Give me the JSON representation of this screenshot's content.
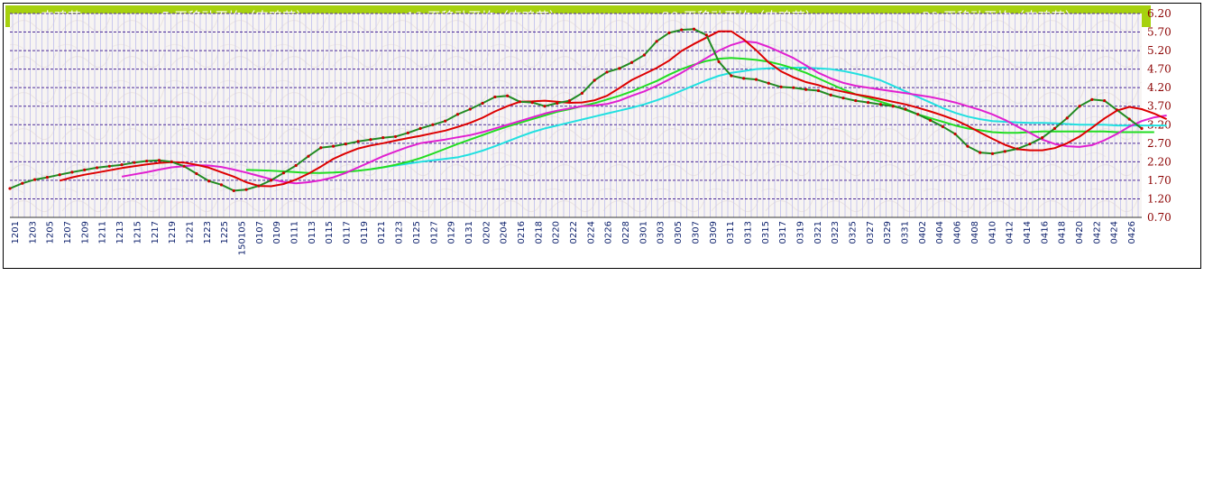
{
  "chart_data": {
    "type": "line",
    "title": "",
    "xlabel": "",
    "ylabel": "",
    "ylim": [
      0.7,
      6.2
    ],
    "yticks": [
      "6.20",
      "5.70",
      "5.20",
      "4.70",
      "4.20",
      "3.70",
      "3.20",
      "2.70",
      "2.20",
      "1.70",
      "1.20",
      "0.70"
    ],
    "x_tick_labels": [
      "1201",
      "1203",
      "1205",
      "1207",
      "1209",
      "1211",
      "1213",
      "1215",
      "1217",
      "1219",
      "1221",
      "1223",
      "1225",
      "150105",
      "0107",
      "0109",
      "0111",
      "0113",
      "0115",
      "0117",
      "0119",
      "0121",
      "0123",
      "0125",
      "0127",
      "0129",
      "0131",
      "0202",
      "0204",
      "0216",
      "0218",
      "0220",
      "0222",
      "0224",
      "0226",
      "0228",
      "0301",
      "0303",
      "0305",
      "0307",
      "0309",
      "0311",
      "0313",
      "0315",
      "0317",
      "0319",
      "0321",
      "0323",
      "0325",
      "0327",
      "0329",
      "0331",
      "0402",
      "0404",
      "0406",
      "0408",
      "0410",
      "0412",
      "0414",
      "0416",
      "0418",
      "0420",
      "0422",
      "0424",
      "0426"
    ],
    "grid": "horizontal dashed",
    "legend_position": "top",
    "series": [
      {
        "name": "肉鸡苗",
        "color": "#228b22",
        "marker_color": "#cc0000",
        "values": [
          1.48,
          1.62,
          1.72,
          1.78,
          1.85,
          1.92,
          1.98,
          2.04,
          2.08,
          2.12,
          2.18,
          2.22,
          2.24,
          2.2,
          2.08,
          1.88,
          1.68,
          1.58,
          1.42,
          1.45,
          1.55,
          1.7,
          1.9,
          2.1,
          2.35,
          2.58,
          2.62,
          2.68,
          2.75,
          2.8,
          2.85,
          2.88,
          2.98,
          3.1,
          3.2,
          3.3,
          3.48,
          3.62,
          3.78,
          3.95,
          3.98,
          3.82,
          3.8,
          3.7,
          3.78,
          3.85,
          4.05,
          4.4,
          4.62,
          4.72,
          4.88,
          5.08,
          5.45,
          5.68,
          5.76,
          5.78,
          5.62,
          4.9,
          4.52,
          4.45,
          4.42,
          4.32,
          4.22,
          4.2,
          4.15,
          4.12,
          4.0,
          3.92,
          3.85,
          3.8,
          3.75,
          3.7,
          3.62,
          3.48,
          3.32,
          3.15,
          2.95,
          2.62,
          2.45,
          2.42,
          2.48,
          2.55,
          2.68,
          2.85,
          3.1,
          3.38,
          3.7,
          3.88,
          3.85,
          3.6,
          3.35,
          3.1
        ]
      },
      {
        "name": "5 天移动平均（肉鸡苗）",
        "color": "#dd0000",
        "values": [
          null,
          null,
          null,
          null,
          1.69,
          1.78,
          1.85,
          1.91,
          1.97,
          2.03,
          2.08,
          2.13,
          2.17,
          2.19,
          2.18,
          2.12,
          2.04,
          1.92,
          1.8,
          1.65,
          1.55,
          1.54,
          1.6,
          1.72,
          1.88,
          2.07,
          2.28,
          2.43,
          2.56,
          2.64,
          2.7,
          2.77,
          2.84,
          2.9,
          2.97,
          3.04,
          3.14,
          3.25,
          3.39,
          3.56,
          3.7,
          3.82,
          3.83,
          3.85,
          3.82,
          3.79,
          3.8,
          3.86,
          3.98,
          4.19,
          4.41,
          4.57,
          4.73,
          4.93,
          5.19,
          5.38,
          5.55,
          5.72,
          5.72,
          5.5,
          5.21,
          4.88,
          4.64,
          4.48,
          4.35,
          4.27,
          4.16,
          4.09,
          4.02,
          3.96,
          3.89,
          3.82,
          3.75,
          3.66,
          3.56,
          3.45,
          3.33,
          3.17,
          2.99,
          2.82,
          2.66,
          2.54,
          2.51,
          2.51,
          2.57,
          2.7,
          2.88,
          3.12,
          3.37,
          3.58,
          3.68,
          3.62,
          3.5,
          3.35
        ]
      },
      {
        "name": "10 天移动平均（肉鸡苗）",
        "color": "#e020d0",
        "values": [
          null,
          null,
          null,
          null,
          null,
          null,
          null,
          null,
          null,
          1.8,
          1.86,
          1.92,
          1.99,
          2.05,
          2.08,
          2.11,
          2.1,
          2.06,
          1.99,
          1.91,
          1.82,
          1.73,
          1.66,
          1.62,
          1.65,
          1.7,
          1.78,
          1.9,
          2.05,
          2.2,
          2.35,
          2.48,
          2.6,
          2.7,
          2.75,
          2.8,
          2.86,
          2.92,
          3.0,
          3.1,
          3.2,
          3.3,
          3.4,
          3.5,
          3.58,
          3.64,
          3.7,
          3.72,
          3.76,
          3.85,
          3.98,
          4.1,
          4.25,
          4.42,
          4.6,
          4.8,
          5.0,
          5.2,
          5.35,
          5.45,
          5.42,
          5.3,
          5.15,
          5.0,
          4.8,
          4.6,
          4.45,
          4.33,
          4.25,
          4.2,
          4.15,
          4.1,
          4.05,
          4.0,
          3.95,
          3.88,
          3.8,
          3.7,
          3.6,
          3.48,
          3.33,
          3.15,
          2.98,
          2.8,
          2.68,
          2.62,
          2.6,
          2.65,
          2.78,
          2.95,
          3.15,
          3.3,
          3.4,
          3.45
        ]
      },
      {
        "name": "20 天移动平均（肉鸡苗）",
        "color": "#22dd22",
        "values": [
          null,
          null,
          null,
          null,
          null,
          null,
          null,
          null,
          null,
          null,
          null,
          null,
          null,
          null,
          null,
          null,
          null,
          null,
          null,
          1.98,
          1.97,
          1.96,
          1.94,
          1.92,
          1.9,
          1.9,
          1.91,
          1.93,
          1.96,
          2.0,
          2.05,
          2.12,
          2.2,
          2.3,
          2.42,
          2.55,
          2.68,
          2.8,
          2.92,
          3.04,
          3.15,
          3.25,
          3.35,
          3.45,
          3.55,
          3.62,
          3.7,
          3.78,
          3.88,
          3.98,
          4.1,
          4.24,
          4.38,
          4.55,
          4.7,
          4.82,
          4.92,
          4.98,
          5.0,
          4.98,
          4.95,
          4.9,
          4.82,
          4.72,
          4.6,
          4.45,
          4.3,
          4.15,
          4.02,
          3.92,
          3.82,
          3.72,
          3.6,
          3.48,
          3.38,
          3.28,
          3.18,
          3.1,
          3.05,
          3.0,
          2.98,
          2.98,
          3.0,
          3.02,
          3.02,
          3.02,
          3.02,
          3.02,
          3.02,
          3.0,
          3.0,
          3.0,
          3.0
        ]
      },
      {
        "name": "30 天移动平均（肉鸡苗）",
        "color": "#22e0e0",
        "values": [
          null,
          null,
          null,
          null,
          null,
          null,
          null,
          null,
          null,
          null,
          null,
          null,
          null,
          null,
          null,
          null,
          null,
          null,
          null,
          null,
          null,
          null,
          null,
          null,
          null,
          null,
          null,
          null,
          null,
          2.0,
          2.05,
          2.1,
          2.15,
          2.2,
          2.24,
          2.28,
          2.32,
          2.4,
          2.5,
          2.62,
          2.75,
          2.88,
          3.0,
          3.1,
          3.18,
          3.26,
          3.34,
          3.42,
          3.5,
          3.58,
          3.66,
          3.75,
          3.86,
          3.98,
          4.12,
          4.26,
          4.4,
          4.52,
          4.6,
          4.65,
          4.7,
          4.72,
          4.73,
          4.74,
          4.74,
          4.72,
          4.7,
          4.65,
          4.58,
          4.5,
          4.4,
          4.25,
          4.1,
          3.95,
          3.8,
          3.65,
          3.52,
          3.42,
          3.35,
          3.3,
          3.28,
          3.26,
          3.25,
          3.25,
          3.24,
          3.22,
          3.2,
          3.2,
          3.2,
          3.18,
          3.18,
          3.18,
          3.18,
          3.18
        ]
      }
    ]
  }
}
